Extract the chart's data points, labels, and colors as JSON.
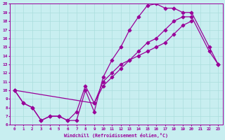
{
  "xlabel": "Windchill (Refroidissement éolien,°C)",
  "bg_color": "#c8eef0",
  "line_color": "#990099",
  "grid_color": "#aadddd",
  "xlim": [
    -0.5,
    23.5
  ],
  "ylim": [
    6,
    20
  ],
  "xticks": [
    0,
    1,
    2,
    3,
    4,
    5,
    6,
    7,
    8,
    9,
    10,
    11,
    12,
    13,
    14,
    15,
    16,
    17,
    18,
    19,
    20,
    21,
    22,
    23
  ],
  "yticks": [
    6,
    7,
    8,
    9,
    10,
    11,
    12,
    13,
    14,
    15,
    16,
    17,
    18,
    19,
    20
  ],
  "line1_x": [
    0,
    1,
    2,
    3,
    4,
    5,
    6,
    7,
    8,
    9,
    10,
    11,
    12,
    13,
    14,
    15,
    16,
    17,
    18,
    19,
    20,
    22,
    23
  ],
  "line1_y": [
    10,
    8.5,
    8.0,
    6.5,
    7.0,
    7.0,
    6.5,
    6.5,
    10.0,
    7.5,
    11.5,
    13.5,
    15.0,
    17.0,
    18.5,
    19.8,
    20.0,
    19.5,
    19.5,
    19.0,
    19.0,
    15.0,
    13.0
  ],
  "line2_x": [
    0,
    1,
    2,
    3,
    4,
    5,
    6,
    7,
    8,
    9,
    10,
    11,
    12,
    13,
    14,
    15,
    16,
    17,
    18,
    19,
    20,
    22,
    23
  ],
  "line2_y": [
    10,
    8.5,
    8.0,
    6.5,
    7.0,
    7.0,
    6.5,
    7.5,
    10.5,
    8.5,
    11.0,
    12.0,
    13.0,
    13.5,
    14.0,
    14.5,
    15.0,
    15.5,
    16.5,
    17.5,
    18.0,
    null,
    13.0
  ],
  "line3_x": [
    0,
    9,
    10,
    11,
    12,
    13,
    14,
    15,
    16,
    17,
    18,
    19,
    20,
    22,
    23
  ],
  "line3_y": [
    10,
    8.5,
    10.5,
    11.5,
    12.5,
    13.5,
    14.5,
    15.5,
    16.0,
    17.0,
    18.0,
    18.5,
    18.5,
    14.5,
    13.0
  ],
  "marker": "D",
  "markersize": 2.5,
  "linewidth": 0.9
}
